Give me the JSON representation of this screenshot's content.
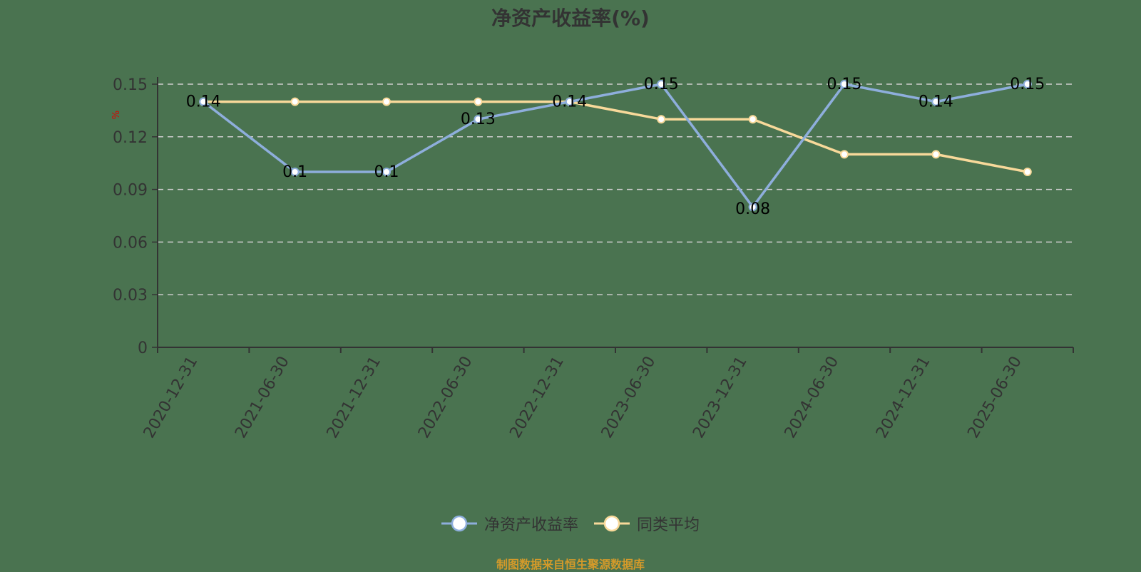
{
  "title": "净资产收益率(%)",
  "y_unit": "%",
  "source": "制图数据来自恒生聚源数据库",
  "colors": {
    "background": "#4a7350",
    "series_roe": "#8eaedc",
    "series_avg": "#f8d99a",
    "axis": "#333333",
    "grid": "#cccccc",
    "unit": "#dd0000",
    "source": "#d49a2a"
  },
  "legend": [
    {
      "name": "净资产收益率",
      "color": "#8eaedc"
    },
    {
      "name": "同类平均",
      "color": "#f8d99a"
    }
  ],
  "chart_data": {
    "type": "line",
    "title": "净资产收益率(%)",
    "xlabel": "",
    "ylabel": "%",
    "ylim": [
      0,
      0.15
    ],
    "yticks": [
      0,
      0.03,
      0.06,
      0.09,
      0.12,
      0.15
    ],
    "ytick_labels": [
      "0",
      "0.03",
      "0.06",
      "0.09",
      "0.12",
      "0.15"
    ],
    "grid": true,
    "legend_position": "bottom",
    "categories": [
      "2020-12-31",
      "2021-06-30",
      "2021-12-31",
      "2022-06-30",
      "2022-12-31",
      "2023-06-30",
      "2023-12-31",
      "2024-06-30",
      "2024-12-31",
      "2025-06-30"
    ],
    "series": [
      {
        "name": "净资产收益率",
        "values": [
          0.14,
          0.1,
          0.1,
          0.13,
          0.14,
          0.15,
          0.08,
          0.15,
          0.14,
          0.15
        ],
        "data_labels": [
          "0.14",
          "0.1",
          "0.1",
          "0.13",
          "0.14",
          "0.15",
          "0.08",
          "0.15",
          "0.14",
          "0.15"
        ]
      },
      {
        "name": "同类平均",
        "values": [
          0.14,
          0.14,
          0.14,
          0.14,
          0.14,
          0.13,
          0.13,
          0.11,
          0.11,
          0.1
        ]
      }
    ]
  }
}
